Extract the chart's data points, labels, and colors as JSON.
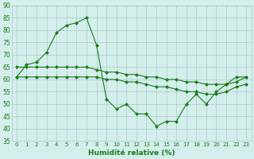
{
  "x": [
    0,
    1,
    2,
    3,
    4,
    5,
    6,
    7,
    8,
    9,
    10,
    11,
    12,
    13,
    14,
    15,
    16,
    17,
    18,
    19,
    20,
    21,
    22,
    23
  ],
  "line1": [
    61,
    66,
    67,
    71,
    79,
    82,
    83,
    85,
    74,
    52,
    48,
    50,
    46,
    46,
    41,
    43,
    43,
    50,
    54,
    50,
    55,
    58,
    61,
    61
  ],
  "line2": [
    65,
    65,
    65,
    65,
    65,
    65,
    65,
    65,
    64,
    63,
    63,
    62,
    62,
    61,
    61,
    60,
    60,
    59,
    59,
    58,
    58,
    58,
    59,
    61
  ],
  "line3": [
    61,
    61,
    61,
    61,
    61,
    61,
    61,
    61,
    61,
    60,
    60,
    59,
    59,
    58,
    57,
    57,
    56,
    55,
    55,
    54,
    54,
    55,
    57,
    58
  ],
  "bg_color": "#d4eeeb",
  "grid_color": "#a8cccb",
  "line_color": "#1a7a1a",
  "xlabel": "Humidité relative (%)",
  "ylim": [
    35,
    90
  ],
  "yticks": [
    35,
    40,
    45,
    50,
    55,
    60,
    65,
    70,
    75,
    80,
    85,
    90
  ],
  "xticks": [
    0,
    1,
    2,
    3,
    4,
    5,
    6,
    7,
    8,
    9,
    10,
    11,
    12,
    13,
    14,
    15,
    16,
    17,
    18,
    19,
    20,
    21,
    22,
    23
  ]
}
